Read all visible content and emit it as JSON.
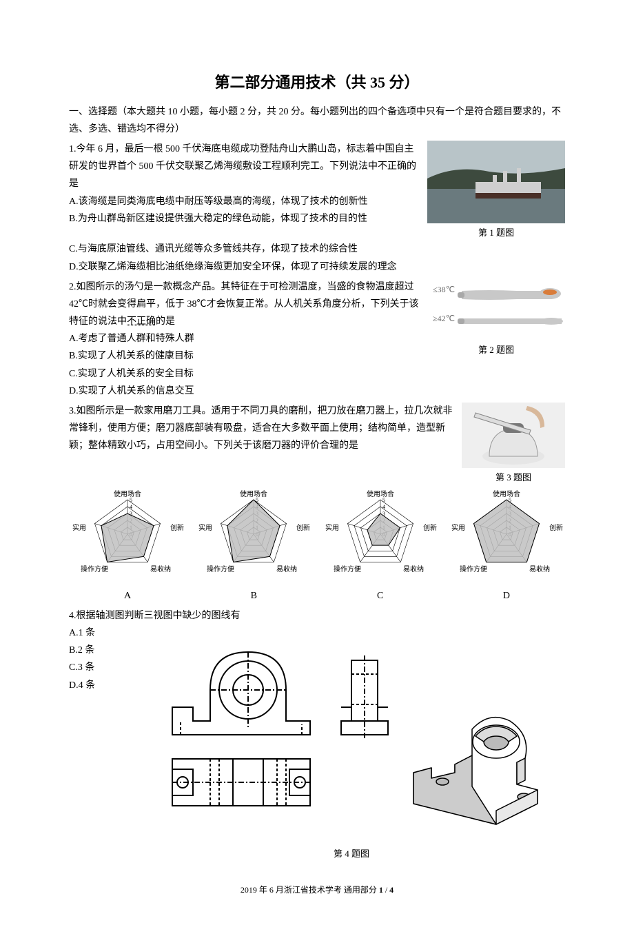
{
  "title": "第二部分通用技术（共 35 分）",
  "section_intro": "一、选择题（本大题共 10 小题，每小题 2 分，共 20 分。每小题列出的四个备选项中只有一个是符合题目要求的，不选、多选、错选均不得分）",
  "q1": {
    "stem": "1.今年 6 月，最后一根 500 千伏海底电缆成功登陆舟山大鹏山岛，标志着中国自主研发的世界首个 500 千伏交联聚乙烯海缆敷设工程顺利完工。下列说法中不正确的是",
    "optA": "A.该海缆是同类海底电缆中耐压等级最高的海缆，体现了技术的创新性",
    "optB": "B.为舟山群岛新区建设提供强大稳定的绿色动能，体现了技术的目的性",
    "optC": "C.与海底原油管线、通讯光缆等众多管线共存，体现了技术的综合性",
    "optD": "D.交联聚乙烯海缆相比油纸绝缘海缆更加安全环保，体现了可持续发展的理念",
    "caption": "第 1 题图",
    "photo": {
      "sky": "#b8c4c8",
      "water": "#6a7a7e",
      "hill": "#3d4a3e",
      "ship": "#cfcfcf",
      "hull": "#4a3028"
    }
  },
  "q2": {
    "stem_a": "2.如图所示的汤勺是一款概念产品。其特征在于可检测温度，当盛的食物温度超过 42℃时就会变得扁平，低于 38℃才会恢复正常。从人机关系角度分析，下列关于该特征的说法中",
    "stem_b": "不正确",
    "stem_c": "的是",
    "optA": "A.考虑了普通人群和特殊人群",
    "optB": "B.实现了人机关系的健康目标",
    "optC": "C.实现了人机关系的安全目标",
    "optD": "D.实现了人机关系的信息交互",
    "caption": "第 2 题图",
    "labels": {
      "cool": "≤38℃",
      "hot": "≥42℃"
    },
    "colors": {
      "spoon": "#c8c8c8",
      "handle": "#a8a8a8",
      "food": "#d97c3a",
      "text": "#666"
    }
  },
  "q3": {
    "stem": "3.如图所示是一款家用磨刀工具。适用于不同刀具的磨削，把刀放在磨刀器上，拉几次就非常锋利，使用方便；磨刀器底部装有吸盘，适合在大多数平面上使用；结构简单，造型新颖；整体精致小巧，占用空间小。下列关于该磨刀器的评价合理的是",
    "caption": "第 3 题图",
    "radar": {
      "axis_labels": [
        "使用场合",
        "创新",
        "易收纳",
        "操作方便",
        "实用"
      ],
      "ticks": [
        0,
        1,
        2,
        3,
        4,
        5
      ],
      "letters": [
        "A",
        "B",
        "C",
        "D"
      ],
      "fill": "#bfbfbf",
      "stroke": "#000",
      "values": {
        "A": [
          3,
          4,
          4,
          5,
          4
        ],
        "B": [
          5,
          4,
          4,
          5,
          4
        ],
        "C": [
          3,
          3,
          2,
          2,
          2
        ],
        "D": [
          5,
          5,
          5,
          5,
          5
        ]
      },
      "label_font": 10,
      "tick_font": 8
    },
    "photo": {
      "bg": "#efefef",
      "body": "#e6e6e6",
      "accent": "#777"
    }
  },
  "q4": {
    "stem": "4.根据轴测图判断三视图中缺少的图线有",
    "optA": "A.1 条",
    "optB": "B.2 条",
    "optC": "C.3 条",
    "optD": "D.4 条",
    "caption": "第 4 题图",
    "drawing": {
      "stroke": "#000",
      "dash": "4,3",
      "fill": "#fff",
      "shade": "#ddd",
      "iso_shade": "#aaa"
    }
  },
  "footer": {
    "text_a": "2019 年 6 月浙江省技术学考 通用部分 ",
    "page_current": "1",
    "sep": " / ",
    "page_total": "4"
  }
}
